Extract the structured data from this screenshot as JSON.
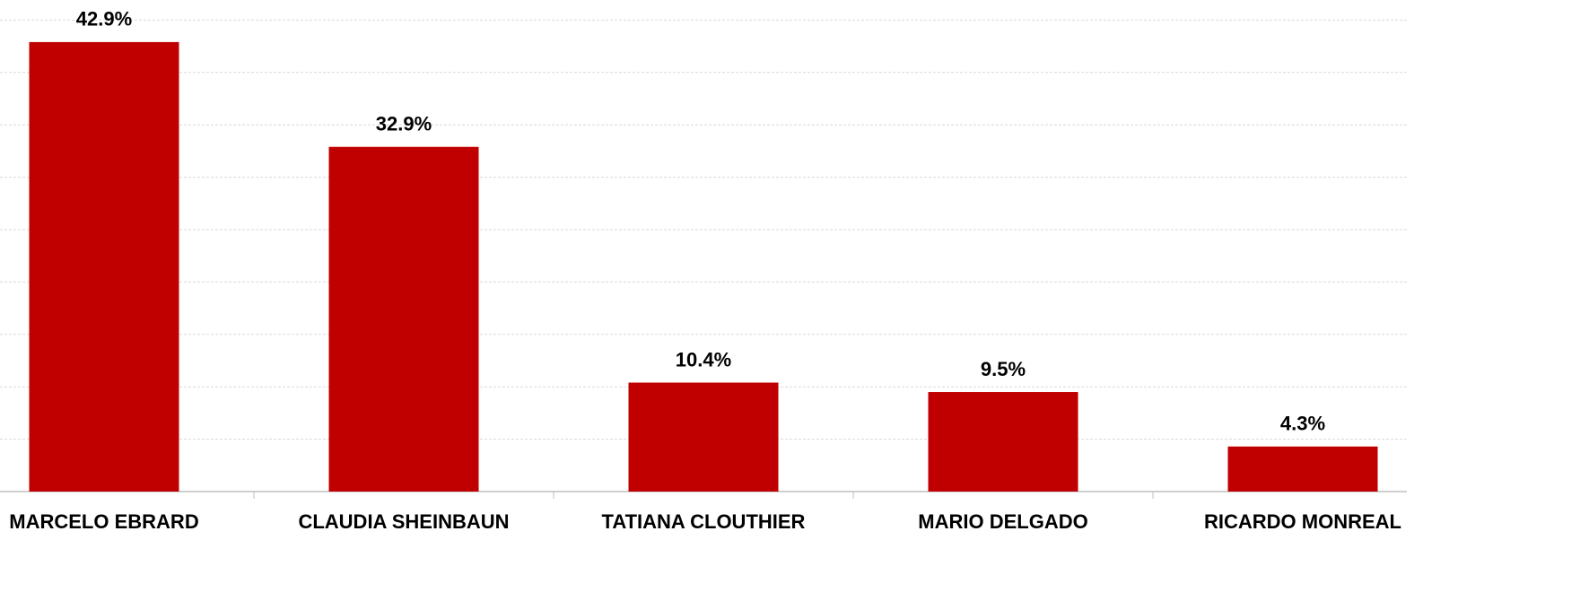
{
  "chart_data": {
    "type": "bar",
    "categories": [
      "MARCELO EBRARD",
      "CLAUDIA SHEINBAUN",
      "TATIANA CLOUTHIER",
      "MARIO DELGADO",
      "RICARDO MONREAL"
    ],
    "values": [
      42.9,
      32.9,
      10.4,
      9.5,
      4.3
    ],
    "value_labels": [
      "42.9%",
      "32.9%",
      "10.4%",
      "9.5%",
      "4.3%"
    ],
    "color": "#c00000",
    "ylim": [
      0,
      45
    ],
    "yticks": [
      0,
      5,
      10,
      15,
      20,
      25,
      30,
      35,
      40,
      45
    ],
    "grid": true
  }
}
